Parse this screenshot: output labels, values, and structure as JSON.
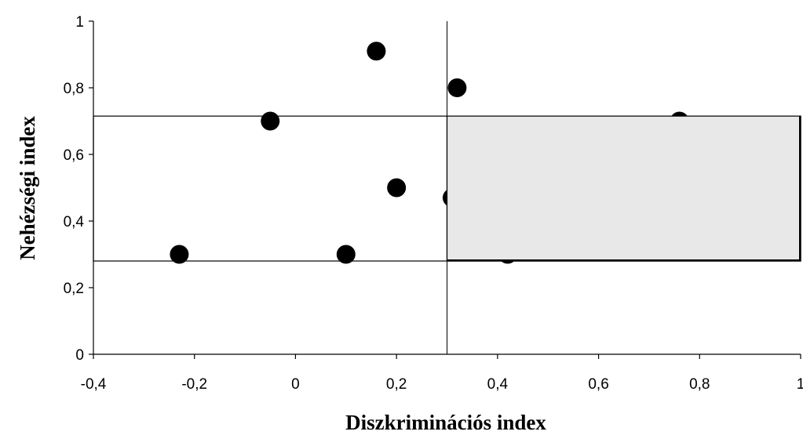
{
  "chart_data": {
    "type": "scatter",
    "xlabel": "Diszkriminációs index",
    "ylabel": "Nehézségi index",
    "xlim": [
      -0.4,
      1
    ],
    "ylim": [
      0,
      1
    ],
    "x_ticks": [
      -0.4,
      -0.2,
      0,
      0.2,
      0.4,
      0.6,
      0.8,
      1
    ],
    "x_tick_labels": [
      "-0,4",
      "-0,2",
      "0",
      "0,2",
      "0,4",
      "0,6",
      "0,8",
      "1"
    ],
    "y_ticks": [
      0,
      0.2,
      0.4,
      0.6,
      0.8,
      1
    ],
    "y_tick_labels": [
      "0",
      "0,2",
      "0,4",
      "0,6",
      "0,8",
      "1"
    ],
    "grid": false,
    "points": [
      {
        "x": -0.23,
        "y": 0.3
      },
      {
        "x": -0.05,
        "y": 0.7
      },
      {
        "x": 0.1,
        "y": 0.3
      },
      {
        "x": 0.16,
        "y": 0.91
      },
      {
        "x": 0.2,
        "y": 0.5
      },
      {
        "x": 0.31,
        "y": 0.47
      },
      {
        "x": 0.32,
        "y": 0.8
      },
      {
        "x": 0.42,
        "y": 0.3
      },
      {
        "x": 0.76,
        "y": 0.7
      }
    ],
    "reference_lines": {
      "vertical_x": 0.3
    },
    "regions": [
      {
        "x_range": [
          -0.4,
          1
        ],
        "y_range": [
          0.28,
          0.715
        ],
        "fill": "none",
        "stroke": "#000000"
      },
      {
        "x_range": [
          0.3,
          1
        ],
        "y_range": [
          0.28,
          0.715
        ],
        "fill": "#e8e8e8",
        "stroke": "#000000"
      }
    ],
    "colors": {
      "point": "#000000",
      "shaded_region": "#e8e8e8"
    }
  }
}
